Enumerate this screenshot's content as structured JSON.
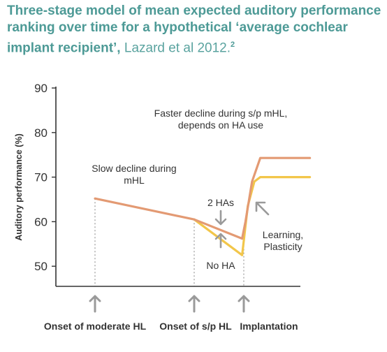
{
  "title": {
    "bold": "Three-stage model of mean expected auditory performance ranking over time for a hypothetical ‘average cochlear implant recipient’,",
    "rest": " Lazard et al 2012.",
    "ref": "2"
  },
  "colors": {
    "accent": "#4d9a96",
    "two_has": "#e39a73",
    "no_ha": "#f2c64a",
    "axis": "#333333",
    "guide": "#999999"
  },
  "chart_data": {
    "type": "line",
    "ylabel": "Auditory performance (%)",
    "ylim": [
      45,
      90
    ],
    "yticks": [
      50,
      60,
      70,
      80,
      90
    ],
    "x_events": [
      {
        "label": "Onset of moderate HL",
        "x": 1
      },
      {
        "label": "Onset of s/p HL",
        "x": 4
      },
      {
        "label": "Implantation",
        "x": 5.5
      }
    ],
    "series": [
      {
        "name": "2 HAs",
        "color": "#e39a73",
        "points": [
          [
            1,
            65.2
          ],
          [
            4,
            60.5
          ],
          [
            5.45,
            56.2
          ],
          [
            5.55,
            60
          ],
          [
            5.75,
            69
          ],
          [
            6,
            74.3
          ],
          [
            7.5,
            74.3
          ]
        ]
      },
      {
        "name": "No HA",
        "color": "#f2c64a",
        "points": [
          [
            4,
            60.5
          ],
          [
            5.45,
            52.5
          ],
          [
            5.62,
            63.5
          ],
          [
            5.82,
            69
          ],
          [
            6,
            70
          ],
          [
            7.5,
            70
          ]
        ]
      }
    ],
    "annotations": [
      {
        "text": "Faster decline during s/p mHL,\ndepends on HA use"
      },
      {
        "text": "Slow decline during\nmHL"
      },
      {
        "text": "2 HAs"
      },
      {
        "text": "No HA"
      },
      {
        "text": "Learning,\nPlasticity"
      }
    ]
  }
}
